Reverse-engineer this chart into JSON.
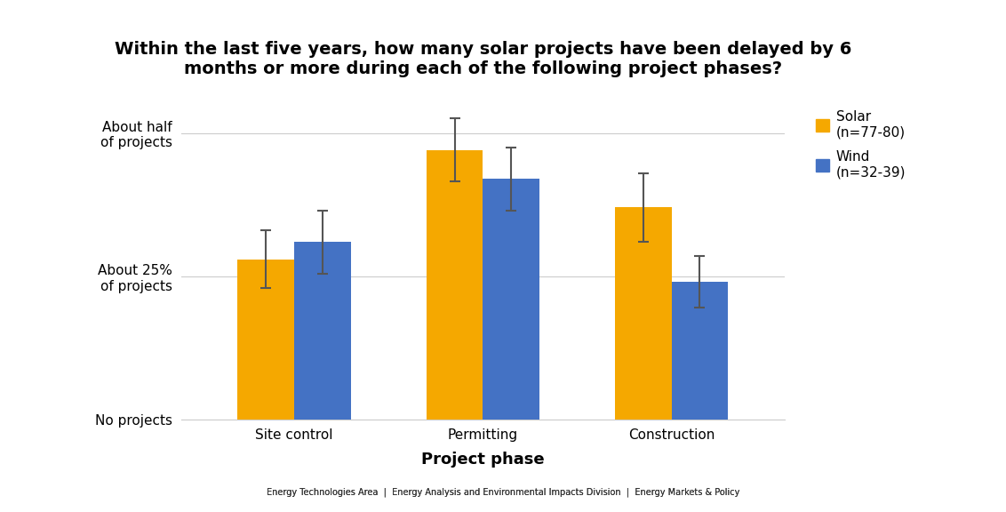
{
  "title": "Within the last five years, how many solar projects have been delayed by 6\nmonths or more during each of the following project phases?",
  "categories": [
    "Site control",
    "Permitting",
    "Construction"
  ],
  "solar_values": [
    0.28,
    0.47,
    0.37
  ],
  "wind_values": [
    0.31,
    0.42,
    0.24
  ],
  "solar_errors": [
    0.05,
    0.055,
    0.06
  ],
  "wind_errors": [
    0.055,
    0.055,
    0.045
  ],
  "solar_color": "#F5A800",
  "wind_color": "#4472C4",
  "solar_label": "Solar\n(n=77-80)",
  "wind_label": "Wind\n(n=32-39)",
  "xlabel": "Project phase",
  "ytick_positions": [
    0.0,
    0.25,
    0.5
  ],
  "ytick_labels": [
    "No projects",
    "About 25%\nof projects",
    "About half\nof projects"
  ],
  "ylim": [
    0,
    0.58
  ],
  "bar_width": 0.3,
  "background_color": "#FFFFFF",
  "grid_color": "#CCCCCC",
  "footer_text": "Energy Technologies Area  |  Energy Analysis and Environmental Impacts Division  |  Energy Markets & Policy",
  "title_fontsize": 14,
  "axis_label_fontsize": 12,
  "tick_fontsize": 11,
  "legend_fontsize": 11
}
